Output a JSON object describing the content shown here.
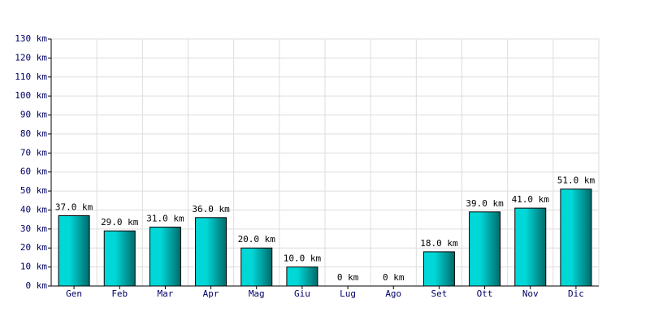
{
  "chart_data": {
    "type": "bar",
    "categories": [
      "Gen",
      "Feb",
      "Mar",
      "Apr",
      "Mag",
      "Giu",
      "Lug",
      "Ago",
      "Set",
      "Ott",
      "Nov",
      "Dic"
    ],
    "values": [
      37,
      29,
      31,
      36,
      20,
      10,
      0,
      0,
      18,
      39,
      41,
      51
    ],
    "value_labels": [
      "37.0 km",
      "29.0 km",
      "31.0 km",
      "36.0 km",
      "20.0 km",
      "10.0 km",
      "0 km",
      "0 km",
      "18.0 km",
      "39.0 km",
      "41.0 km",
      "51.0 km"
    ],
    "color": "#00d8d8",
    "ylim": [
      0,
      130
    ],
    "yticks": [
      {
        "value": 0,
        "label": "0 km"
      },
      {
        "value": 10,
        "label": "10 km"
      },
      {
        "value": 20,
        "label": "20 km"
      },
      {
        "value": 30,
        "label": "30 km"
      },
      {
        "value": 40,
        "label": "40 km"
      },
      {
        "value": 50,
        "label": "50 km"
      },
      {
        "value": 60,
        "label": "60 km"
      },
      {
        "value": 70,
        "label": "70 km"
      },
      {
        "value": 80,
        "label": "80 km"
      },
      {
        "value": 90,
        "label": "90 km"
      },
      {
        "value": 100,
        "label": "100 km"
      },
      {
        "value": 110,
        "label": "110 km"
      },
      {
        "value": 120,
        "label": "120 km"
      },
      {
        "value": 130,
        "label": "130 km"
      }
    ],
    "grid": true
  }
}
